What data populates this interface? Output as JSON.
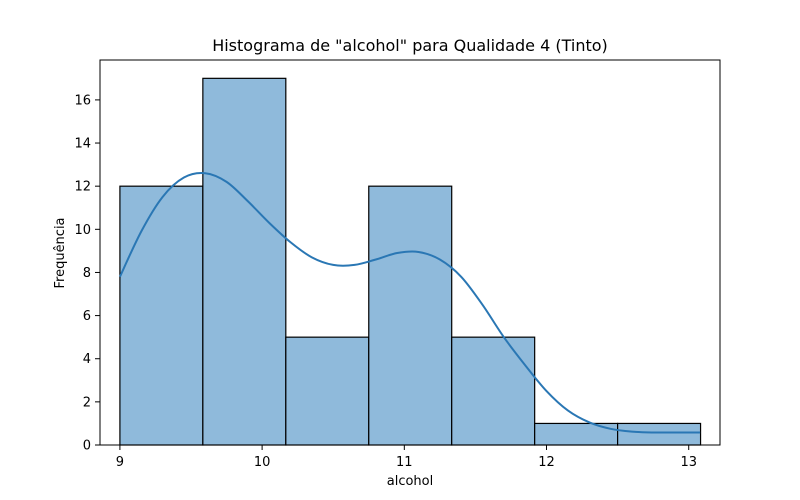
{
  "chart_data": {
    "type": "bar",
    "title": "Histograma de \"alcohol\" para Qualidade 4 (Tinto)",
    "xlabel": "alcohol",
    "ylabel": "Frequência",
    "bins": [
      {
        "start": 9.0,
        "end": 9.5833,
        "count": 12
      },
      {
        "start": 9.5833,
        "end": 10.1667,
        "count": 17
      },
      {
        "start": 10.1667,
        "end": 10.75,
        "count": 5
      },
      {
        "start": 10.75,
        "end": 11.3333,
        "count": 12
      },
      {
        "start": 11.3333,
        "end": 11.9167,
        "count": 5
      },
      {
        "start": 11.9167,
        "end": 12.5,
        "count": 1
      },
      {
        "start": 12.5,
        "end": 13.0833,
        "count": 1
      }
    ],
    "kde": {
      "x": [
        9.0,
        9.15,
        9.3,
        9.45,
        9.6,
        9.75,
        9.9,
        10.05,
        10.2,
        10.35,
        10.5,
        10.65,
        10.8,
        10.95,
        11.1,
        11.25,
        11.4,
        11.55,
        11.7,
        11.85,
        12.0,
        12.15,
        12.3,
        12.45,
        12.6,
        12.75,
        12.9,
        13.08
      ],
      "y": [
        7.8,
        9.9,
        11.5,
        12.4,
        12.6,
        12.2,
        11.3,
        10.3,
        9.4,
        8.7,
        8.35,
        8.35,
        8.6,
        8.9,
        8.95,
        8.6,
        7.8,
        6.5,
        5.0,
        3.7,
        2.5,
        1.6,
        1.05,
        0.75,
        0.62,
        0.58,
        0.58,
        0.58
      ]
    },
    "xlim": [
      8.86,
      13.22
    ],
    "ylim": [
      0,
      17.85
    ],
    "xticks": [
      9,
      10,
      11,
      12,
      13
    ],
    "yticks": [
      0,
      2,
      4,
      6,
      8,
      10,
      12,
      14,
      16
    ],
    "grid": false,
    "colors": {
      "bar_fill": "#8fbadb",
      "bar_edge": "#000000",
      "kde_line": "#2a77b4"
    }
  }
}
